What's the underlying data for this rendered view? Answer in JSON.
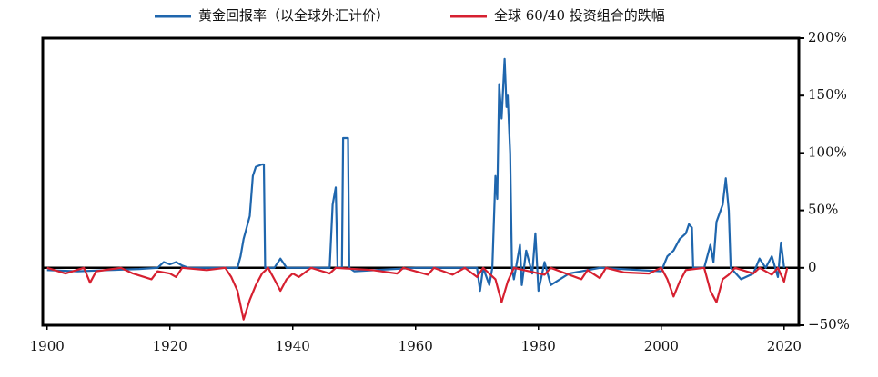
{
  "chart_data": {
    "type": "line",
    "xlim": [
      1899.3,
      2022.4
    ],
    "ylim": [
      -50,
      200
    ],
    "xticks": [
      1900,
      1920,
      1940,
      1960,
      1980,
      2000,
      2020
    ],
    "yticks": [
      {
        "value": 200,
        "label": "200%"
      },
      {
        "value": 150,
        "label": "150%"
      },
      {
        "value": 100,
        "label": "100%"
      },
      {
        "value": 50,
        "label": "50%"
      },
      {
        "value": 0,
        "label": "0"
      },
      {
        "value": -50,
        "label": "−50%"
      }
    ],
    "legend": "top",
    "series": [
      {
        "name": "黄金回报率（以全球外汇计价）",
        "color": "#1f66ad",
        "x": [
          1900,
          1905,
          1910,
          1915,
          1918,
          1919,
          1920,
          1921,
          1922,
          1923,
          1930,
          1931,
          1931.5,
          1932,
          1932.5,
          1933,
          1933.5,
          1934,
          1935,
          1935.3,
          1935.5,
          1937,
          1938,
          1939,
          1946,
          1946.5,
          1947,
          1947.3,
          1948,
          1948.2,
          1949,
          1949.2,
          1950,
          1960,
          1970,
          1970.5,
          1971,
          1972,
          1972.5,
          1973,
          1973.3,
          1973.6,
          1974,
          1974.5,
          1974.8,
          1975,
          1975.4,
          1975.7,
          1976,
          1977,
          1977.3,
          1978,
          1979,
          1979.5,
          1980,
          1981,
          1982,
          1985,
          1990,
          2000,
          2001,
          2002,
          2003,
          2004,
          2004.5,
          2005,
          2005.2,
          2007,
          2008,
          2008.5,
          2009,
          2010,
          2010.5,
          2011,
          2011.3,
          2013,
          2015,
          2016,
          2017,
          2018,
          2019,
          2019.5,
          2020
        ],
        "values": [
          -2,
          -3,
          -2,
          -1,
          0,
          5,
          3,
          5,
          2,
          0,
          0,
          0,
          10,
          25,
          35,
          45,
          80,
          88,
          90,
          90,
          0,
          0,
          8,
          0,
          0,
          55,
          70,
          0,
          0,
          113,
          113,
          0,
          -3,
          0,
          0,
          -20,
          0,
          -15,
          0,
          80,
          60,
          160,
          130,
          182,
          140,
          150,
          100,
          0,
          -10,
          20,
          -15,
          15,
          -5,
          30,
          -20,
          5,
          -15,
          -5,
          0,
          -3,
          10,
          15,
          25,
          30,
          38,
          35,
          0,
          0,
          20,
          5,
          40,
          55,
          78,
          50,
          0,
          -10,
          -5,
          8,
          0,
          10,
          -8,
          22,
          0
        ]
      },
      {
        "name": "全球 60/40 投资组合的跌幅",
        "color": "#d62030",
        "x": [
          1900,
          1903,
          1906,
          1907,
          1908,
          1912,
          1914,
          1917,
          1918,
          1920,
          1921,
          1922,
          1926,
          1929,
          1930,
          1931,
          1932,
          1933,
          1934,
          1935,
          1936,
          1937,
          1938,
          1939,
          1940,
          1941,
          1943,
          1946,
          1947,
          1953,
          1957,
          1958,
          1962,
          1963,
          1966,
          1968,
          1970,
          1971,
          1973,
          1974,
          1975,
          1976,
          1981,
          1982,
          1987,
          1988,
          1990,
          1991,
          1994,
          1998,
          2000,
          2001,
          2002,
          2003,
          2004,
          2007,
          2008,
          2009,
          2010,
          2011,
          2012,
          2015,
          2016,
          2018,
          2019,
          2020,
          2020.5
        ],
        "values": [
          0,
          -5,
          0,
          -13,
          -3,
          0,
          -5,
          -10,
          -3,
          -5,
          -8,
          0,
          -2,
          0,
          -8,
          -20,
          -45,
          -28,
          -15,
          -5,
          0,
          -10,
          -20,
          -10,
          -5,
          -8,
          0,
          -5,
          0,
          -2,
          -5,
          0,
          -6,
          0,
          -6,
          0,
          -8,
          0,
          -10,
          -30,
          -12,
          0,
          -6,
          0,
          -10,
          -2,
          -9,
          0,
          -4,
          -5,
          0,
          -10,
          -25,
          -12,
          -2,
          0,
          -20,
          -30,
          -10,
          -6,
          0,
          -5,
          0,
          -6,
          0,
          -12,
          0
        ]
      }
    ]
  }
}
